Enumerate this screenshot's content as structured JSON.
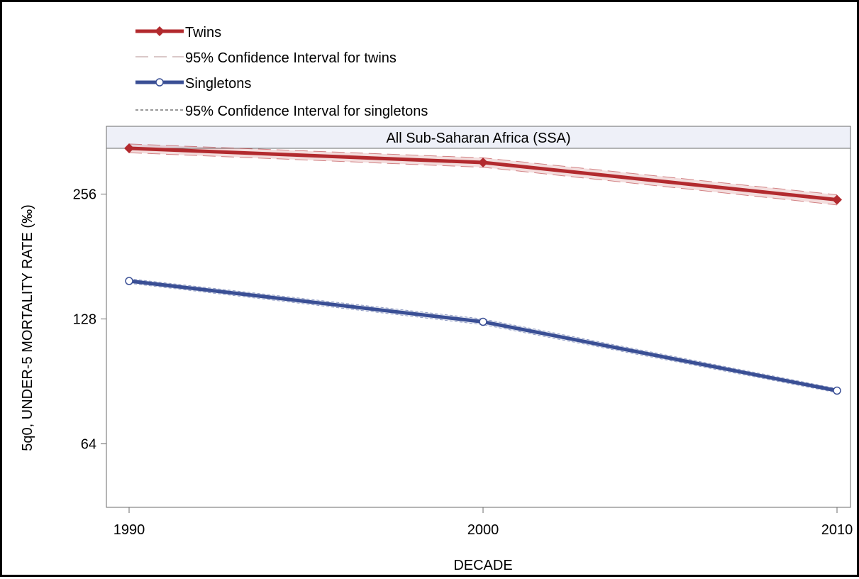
{
  "chart_data": {
    "type": "line",
    "panel_title": "All Sub-Saharan Africa (SSA)",
    "xlabel": "DECADE",
    "ylabel": "5q0, UNDER-5 MORTALITY RATE (‰)",
    "y_scale": "log2",
    "ylim": [
      45,
      330
    ],
    "yticks": [
      64,
      128,
      256
    ],
    "x": [
      1990,
      2000,
      2010
    ],
    "xlim": [
      1990,
      2010
    ],
    "grid": false,
    "legend_position": "top-left",
    "series": [
      {
        "name": "Twins",
        "values": [
          330,
          305,
          248
        ],
        "color": "#b22a2e",
        "marker": "diamond"
      },
      {
        "name": "Singletons",
        "values": [
          158,
          126,
          86
        ],
        "color": "#3a4f95",
        "marker": "open-circle"
      }
    ],
    "confidence_intervals": [
      {
        "name": "95% Confidence Interval for twins",
        "lower": [
          322,
          297,
          241
        ],
        "upper": [
          338,
          313,
          255
        ],
        "color": "#b22a2e",
        "line_style": "long-dash"
      },
      {
        "name": "95% Confidence Interval for singletons",
        "lower": [
          156,
          124,
          85
        ],
        "upper": [
          160,
          128,
          87
        ],
        "color": "#3a4f95",
        "line_style": "short-dash"
      }
    ]
  }
}
